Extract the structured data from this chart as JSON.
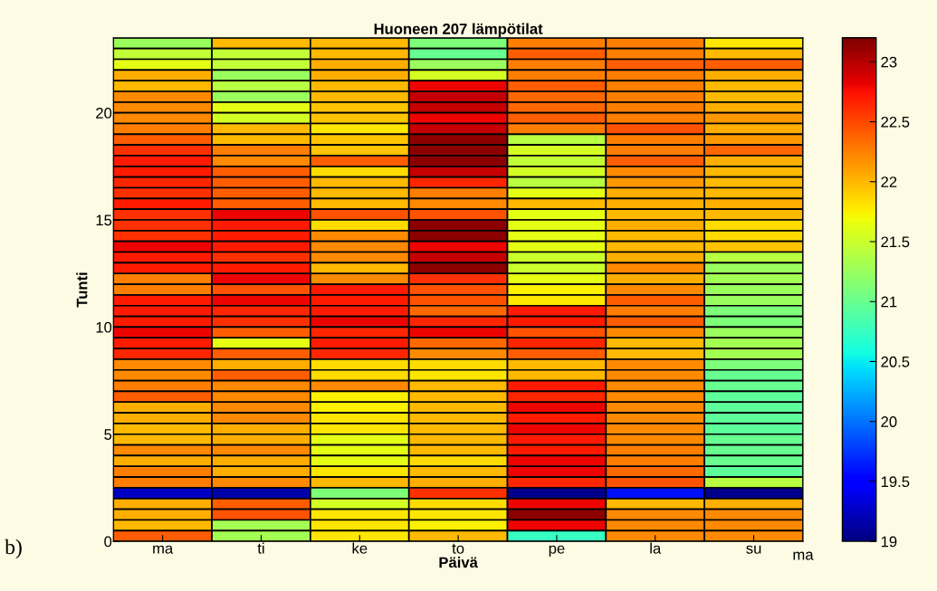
{
  "chart_data": {
    "type": "heatmap",
    "title": "Huoneen 207 lämpötilat",
    "xlabel": "Päivä",
    "ylabel": "Tunti",
    "annotations": [
      "b)",
      "ma"
    ],
    "categories": [
      "ma",
      "ti",
      "ke",
      "to",
      "pe",
      "la",
      "su"
    ],
    "ylim": [
      0,
      23.5
    ],
    "yticks": [
      0,
      5,
      10,
      15,
      20
    ],
    "clim": [
      19,
      23.2
    ],
    "cticks": [
      19,
      19.5,
      20,
      20.5,
      21,
      21.5,
      22,
      22.5,
      23
    ],
    "cells": [
      [
        21.25,
        22.0,
        22.0,
        21.1,
        22.25,
        22.25,
        21.8
      ],
      [
        21.45,
        21.45,
        22.0,
        21.0,
        22.4,
        22.25,
        22.0
      ],
      [
        21.63,
        21.45,
        22.05,
        21.25,
        22.25,
        22.4,
        22.4
      ],
      [
        22.05,
        21.25,
        22.05,
        21.55,
        22.25,
        22.25,
        22.05
      ],
      [
        22.0,
        21.4,
        22.0,
        22.8,
        22.4,
        22.25,
        22.0
      ],
      [
        22.2,
        21.25,
        22.0,
        22.95,
        22.35,
        22.25,
        22.0
      ],
      [
        22.2,
        21.63,
        21.95,
        22.95,
        22.35,
        22.25,
        22.05
      ],
      [
        22.2,
        21.55,
        21.95,
        22.8,
        22.4,
        22.25,
        22.15
      ],
      [
        22.25,
        22.0,
        21.8,
        22.95,
        22.25,
        22.45,
        22.05
      ],
      [
        22.4,
        22.0,
        21.95,
        23.15,
        21.4,
        22.25,
        22.15
      ],
      [
        22.6,
        22.25,
        21.95,
        23.15,
        21.55,
        22.25,
        22.35
      ],
      [
        22.7,
        22.2,
        22.4,
        23.15,
        21.45,
        22.4,
        22.05
      ],
      [
        22.7,
        22.4,
        21.85,
        22.95,
        21.55,
        22.2,
        22.0
      ],
      [
        22.65,
        22.4,
        22.0,
        22.65,
        21.4,
        22.15,
        22.0
      ],
      [
        22.6,
        22.4,
        22.0,
        22.25,
        21.63,
        22.05,
        22.0
      ],
      [
        22.7,
        22.4,
        22.0,
        22.2,
        22.0,
        22.05,
        22.05
      ],
      [
        22.6,
        22.8,
        22.45,
        22.45,
        21.63,
        22.0,
        22.0
      ],
      [
        22.6,
        22.7,
        21.85,
        23.15,
        21.63,
        22.05,
        21.85
      ],
      [
        22.6,
        22.7,
        22.2,
        23.15,
        21.63,
        22.0,
        21.85
      ],
      [
        22.8,
        22.7,
        22.2,
        22.8,
        21.63,
        22.0,
        21.95
      ],
      [
        22.7,
        22.6,
        22.2,
        22.95,
        21.5,
        22.05,
        21.4
      ],
      [
        22.7,
        22.7,
        22.0,
        23.15,
        21.5,
        22.2,
        21.25
      ],
      [
        22.25,
        22.8,
        22.2,
        22.6,
        21.63,
        22.05,
        21.3
      ],
      [
        22.25,
        22.45,
        22.7,
        22.45,
        21.75,
        22.2,
        21.25
      ],
      [
        22.7,
        22.8,
        22.7,
        22.45,
        21.8,
        22.4,
        21.25
      ],
      [
        22.7,
        22.65,
        22.7,
        22.35,
        22.7,
        22.25,
        21.1
      ],
      [
        22.7,
        22.6,
        22.8,
        22.65,
        22.7,
        22.4,
        21.1
      ],
      [
        22.8,
        22.4,
        22.65,
        22.8,
        22.45,
        22.2,
        21.25
      ],
      [
        22.7,
        21.63,
        22.7,
        22.35,
        22.65,
        22.0,
        21.3
      ],
      [
        22.65,
        22.4,
        22.65,
        22.2,
        22.4,
        22.0,
        21.3
      ],
      [
        22.2,
        22.05,
        21.85,
        21.85,
        22.0,
        22.2,
        21.1
      ],
      [
        22.2,
        22.4,
        21.85,
        21.8,
        22.0,
        22.2,
        21.0
      ],
      [
        22.25,
        22.2,
        22.2,
        22.0,
        22.7,
        22.2,
        21.0
      ],
      [
        22.4,
        22.2,
        21.75,
        22.0,
        22.65,
        22.2,
        20.95
      ],
      [
        22.05,
        22.2,
        21.75,
        22.0,
        22.8,
        22.2,
        20.95
      ],
      [
        22.05,
        22.2,
        21.8,
        22.0,
        22.7,
        22.2,
        20.95
      ],
      [
        22.0,
        22.05,
        21.8,
        22.0,
        22.8,
        22.2,
        20.95
      ],
      [
        22.0,
        22.05,
        21.63,
        22.0,
        22.7,
        22.2,
        21.0
      ],
      [
        22.2,
        22.2,
        21.63,
        22.0,
        22.7,
        22.25,
        21.0
      ],
      [
        22.05,
        22.05,
        21.63,
        21.85,
        22.8,
        22.25,
        21.0
      ],
      [
        22.25,
        22.05,
        21.8,
        22.0,
        22.8,
        22.35,
        20.95
      ],
      [
        22.25,
        22.2,
        22.0,
        22.05,
        22.65,
        22.45,
        21.4
      ],
      [
        19.25,
        19.15,
        21.1,
        22.6,
        19.05,
        19.6,
        19.05
      ],
      [
        22.05,
        22.4,
        21.55,
        21.85,
        22.8,
        22.0,
        22.05
      ],
      [
        22.05,
        22.45,
        21.8,
        21.8,
        23.15,
        22.2,
        22.2
      ],
      [
        22.0,
        21.3,
        21.8,
        21.75,
        22.8,
        22.2,
        22.2
      ],
      [
        22.4,
        21.3,
        21.8,
        22.0,
        20.75,
        22.2,
        22.2
      ]
    ]
  }
}
